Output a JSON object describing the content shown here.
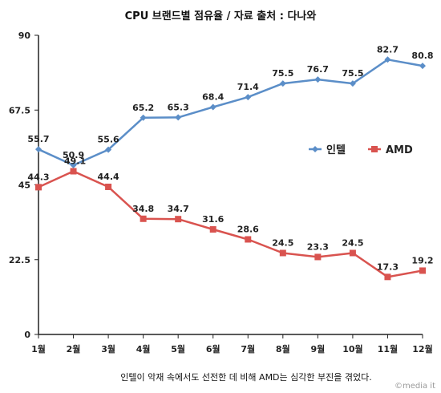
{
  "chart_data": {
    "type": "line",
    "title": "CPU 브랜드별 점유율 / 자료 출처 : 다나와",
    "categories": [
      "1월",
      "2월",
      "3월",
      "4월",
      "5월",
      "6월",
      "7월",
      "8월",
      "9월",
      "10월",
      "11월",
      "12월"
    ],
    "series": [
      {
        "name": "인텔",
        "color": "#5b8ec8",
        "marker": "diamond",
        "values": [
          55.7,
          50.9,
          55.6,
          65.2,
          65.3,
          68.4,
          71.4,
          75.5,
          76.7,
          75.5,
          82.7,
          80.8
        ]
      },
      {
        "name": "AMD",
        "color": "#d9534f",
        "marker": "square",
        "values": [
          44.3,
          49.1,
          44.4,
          34.8,
          34.7,
          31.6,
          28.6,
          24.5,
          23.3,
          24.5,
          17.3,
          19.2
        ]
      }
    ],
    "yticks": [
      "0",
      "22.5",
      "45",
      "67.5",
      "90"
    ],
    "ylim": [
      0,
      90
    ],
    "legend": "right",
    "grid": false,
    "caption": "인텔이 악재 속에서도 선전한 데 비해 AMD는 심각한 부진을 겪었다.",
    "watermark": "©media it"
  }
}
